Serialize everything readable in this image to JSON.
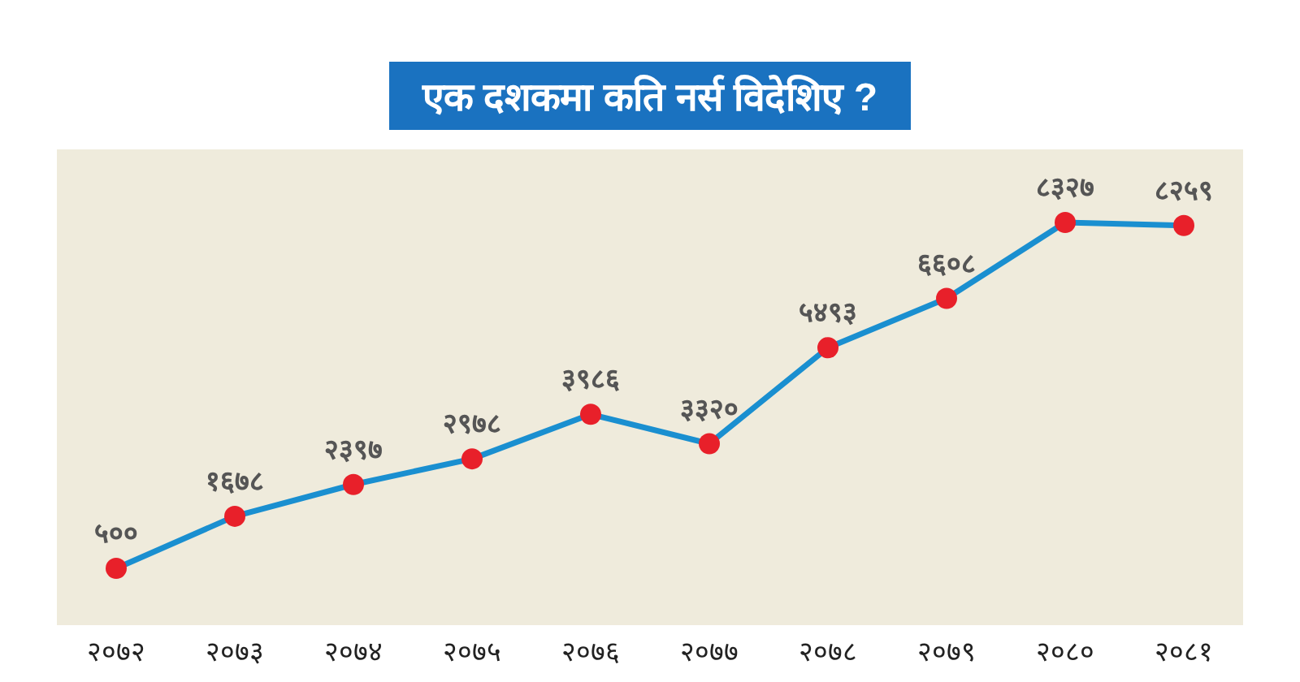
{
  "chart_data": {
    "type": "line",
    "title": "एक दशकमा कति नर्स विदेशिए ?",
    "categories": [
      "२०७२",
      "२०७३",
      "२०७४",
      "२०७५",
      "२०७६",
      "२०७७",
      "२०७८",
      "२०७९",
      "२०८०",
      "२०८१"
    ],
    "series": [
      {
        "color": "#1a8fd0",
        "values": [
          500,
          1678,
          2397,
          2978,
          3986,
          3320,
          5493,
          6608,
          8327,
          8259
        ],
        "value_labels": [
          "५००",
          "१६७८",
          "२३९७",
          "२९७८",
          "३९८६",
          "३३२०",
          "५४९३",
          "६६०८",
          "८३२७",
          "८२५९"
        ]
      }
    ],
    "marker": "circle"
  }
}
